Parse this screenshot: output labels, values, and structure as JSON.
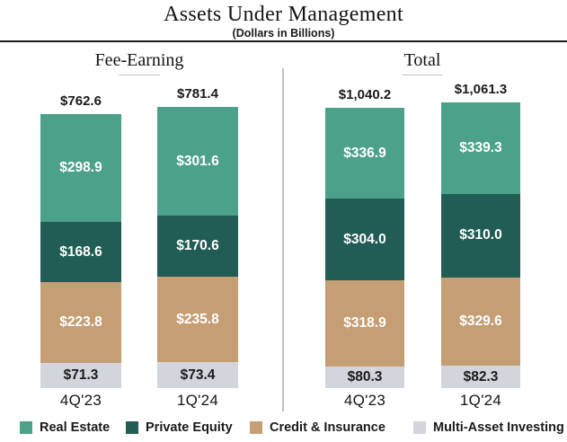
{
  "header": {
    "title": "Assets Under Management",
    "subtitle": "(Dollars in Billions)"
  },
  "chart_data": {
    "type": "bar",
    "stacked": true,
    "title": "Assets Under Management",
    "subtitle": "(Dollars in Billions)",
    "unit": "USD billions",
    "legend_position": "bottom",
    "series": [
      "Real Estate",
      "Private Equity",
      "Credit & Insurance",
      "Multi-Asset Investing"
    ],
    "series_colors": [
      "#4BA18A",
      "#215D55",
      "#C69E74",
      "#D2D5DC"
    ],
    "groups": [
      {
        "name": "Fee-Earning",
        "bars": [
          {
            "category": "4Q'23",
            "total": 762.6,
            "total_label": "$762.6",
            "values": [
              298.9,
              168.6,
              223.8,
              71.3
            ],
            "labels": [
              "$298.9",
              "$168.6",
              "$223.8",
              "$71.3"
            ]
          },
          {
            "category": "1Q'24",
            "total": 781.4,
            "total_label": "$781.4",
            "values": [
              301.6,
              170.6,
              235.8,
              73.4
            ],
            "labels": [
              "$301.6",
              "$170.6",
              "$235.8",
              "$73.4"
            ]
          }
        ]
      },
      {
        "name": "Total",
        "bars": [
          {
            "category": "4Q'23",
            "total": 1040.2,
            "total_label": "$1,040.2",
            "values": [
              336.9,
              304.0,
              318.9,
              80.3
            ],
            "labels": [
              "$336.9",
              "$304.0",
              "$318.9",
              "$80.3"
            ]
          },
          {
            "category": "1Q'24",
            "total": 1061.3,
            "total_label": "$1,061.3",
            "values": [
              339.3,
              310.0,
              329.6,
              82.3
            ],
            "labels": [
              "$339.3",
              "$310.0",
              "$329.6",
              "$82.3"
            ]
          }
        ]
      }
    ],
    "legend": [
      {
        "label": "Real Estate",
        "color": "#4BA18A"
      },
      {
        "label": "Private Equity",
        "color": "#215D55"
      },
      {
        "label": "Credit & Insurance",
        "color": "#C69E74"
      },
      {
        "label": "Multi-Asset Investing",
        "color": "#D2D5DC"
      }
    ]
  }
}
